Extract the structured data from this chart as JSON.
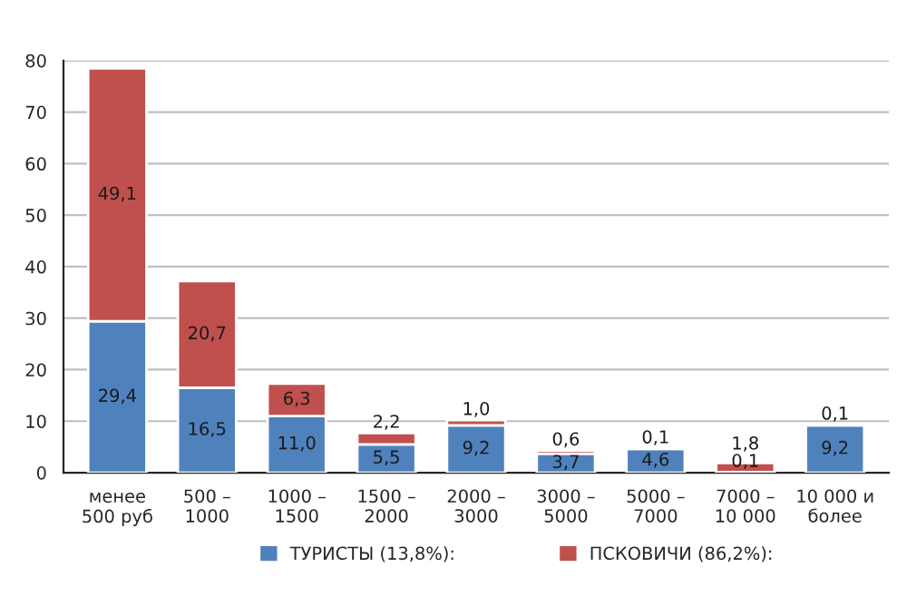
{
  "chart_data": {
    "type": "bar",
    "stacked": true,
    "categories": [
      "менее\n500 руб",
      "500 –\n1000",
      "1000 –\n1500",
      "1500 –\n2000",
      "2000 –\n3000",
      "3000 –\n5000",
      "5000 –\n7000",
      "7000 –\n10 000",
      "10 000 и\nболее"
    ],
    "series": [
      {
        "name": "ТУРИСТЫ (13,8%):",
        "color": "#4f81bd",
        "values": [
          29.4,
          16.5,
          11.0,
          5.5,
          9.2,
          3.7,
          4.6,
          0.1,
          9.2
        ],
        "value_labels": [
          "29,4",
          "16,5",
          "11,0",
          "5,5",
          "9,2",
          "3,7",
          "4,6",
          "0,1",
          "9,2"
        ]
      },
      {
        "name": "ПСКОВИЧИ (86,2%):",
        "color": "#c0504d",
        "values": [
          49.1,
          20.7,
          6.3,
          2.2,
          1.0,
          0.6,
          0.1,
          1.8,
          0.1
        ],
        "value_labels": [
          "49,1",
          "20,7",
          "6,3",
          "2,2",
          "1,0",
          "0,6",
          "0,1",
          "1,8",
          "0,1"
        ]
      }
    ],
    "ylim": [
      0,
      80
    ],
    "yticks": [
      0,
      10,
      20,
      30,
      40,
      50,
      60,
      70,
      80
    ],
    "grid": "y",
    "legend": "bottom"
  }
}
